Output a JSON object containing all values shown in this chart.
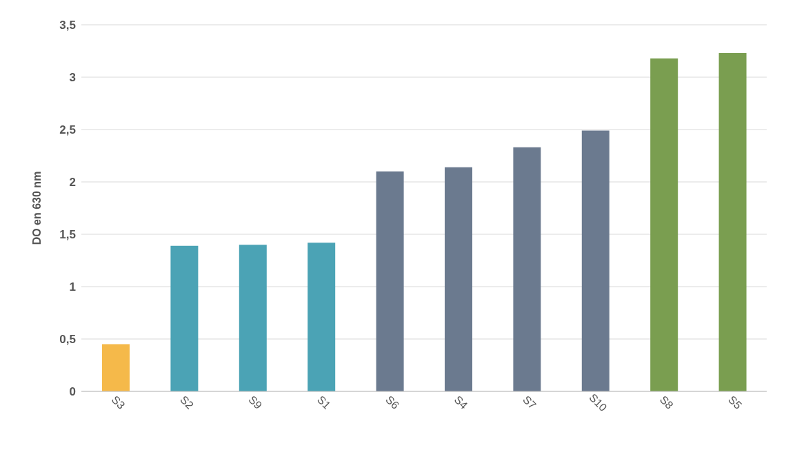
{
  "chart_data": {
    "type": "bar",
    "ylabel": "DO en 630 nm",
    "categories": [
      "S3",
      "S2",
      "S9",
      "S1",
      "S6",
      "S4",
      "S7",
      "S10",
      "S8",
      "S5"
    ],
    "values": [
      0.45,
      1.39,
      1.4,
      1.42,
      2.1,
      2.14,
      2.33,
      2.49,
      3.18,
      3.23
    ],
    "colors": [
      "#f5b94a",
      "#4ba3b5",
      "#4ba3b5",
      "#4ba3b5",
      "#6b7a8f",
      "#6b7a8f",
      "#6b7a8f",
      "#6b7a8f",
      "#7a9e50",
      "#7a9e50"
    ],
    "ylim": [
      0,
      3.5
    ],
    "yticks": [
      0,
      {
        "value": 0.5,
        "label": "0,5"
      },
      1,
      {
        "value": 1.5,
        "label": "1,5"
      },
      2,
      {
        "value": 2.5,
        "label": "2,5"
      },
      3,
      {
        "value": 3.5,
        "label": "3,5"
      }
    ],
    "grid": "y"
  }
}
